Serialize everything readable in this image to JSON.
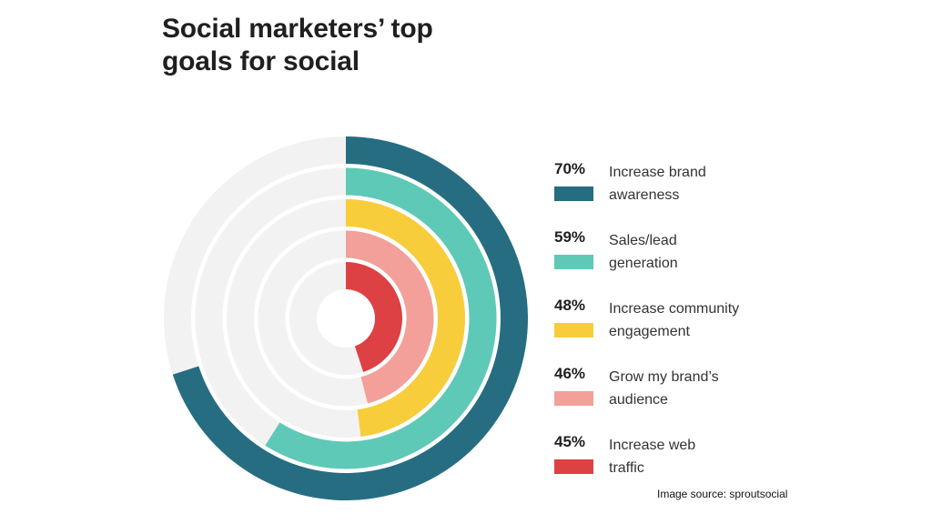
{
  "title_line1": "Social marketers’ top",
  "title_line2": "goals for social",
  "source": "Image source: sproutsocial",
  "colors": {
    "track": "#f2f2f2",
    "series": [
      "#266d82",
      "#5ec9b6",
      "#f8cd3c",
      "#f3a09a",
      "#dd4143"
    ]
  },
  "chart_data": {
    "type": "radial-bar",
    "unit": "%",
    "max": 100,
    "categories": [
      "Increase brand awareness",
      "Sales/lead generation",
      "Increase community engagement",
      "Grow my brand’s audience",
      "Increase web traffic"
    ],
    "values": [
      70,
      59,
      48,
      46,
      45
    ],
    "value_labels": [
      "70%",
      "59%",
      "48%",
      "46%",
      "45%"
    ],
    "label_lines": [
      [
        "Increase brand",
        "awareness"
      ],
      [
        "Sales/lead",
        "generation"
      ],
      [
        "Increase community",
        "engagement"
      ],
      [
        "Grow my brand’s",
        "audience"
      ],
      [
        "Increase web",
        "traffic"
      ]
    ]
  }
}
